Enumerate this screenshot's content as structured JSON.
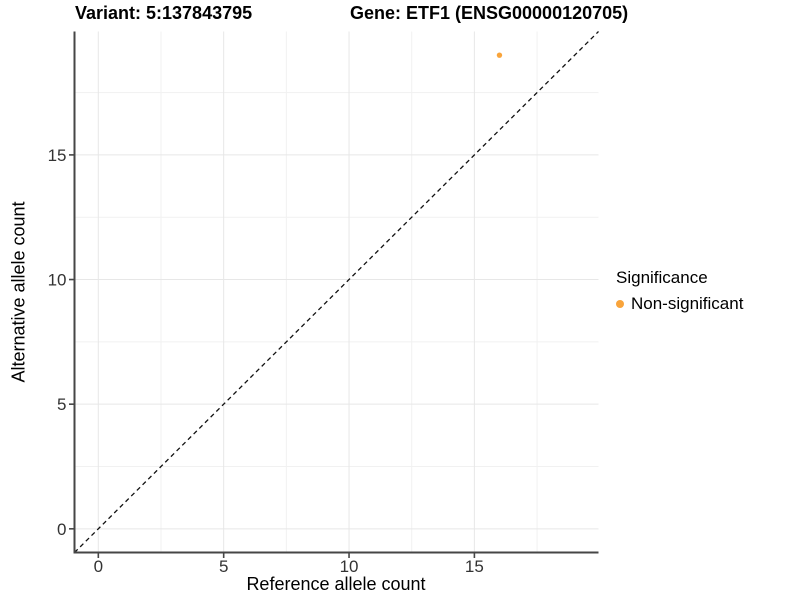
{
  "chart_data": {
    "type": "scatter",
    "titles": {
      "left": "Variant: 5:137843795",
      "right": "Gene: ETF1 (ENSG00000120705)"
    },
    "xlabel": "Reference allele count",
    "ylabel": "Alternative allele count",
    "xlim": [
      -0.95,
      19.95
    ],
    "ylim": [
      -0.95,
      19.95
    ],
    "x_major_ticks": [
      0,
      5,
      10,
      15
    ],
    "y_major_ticks": [
      0,
      5,
      10,
      15
    ],
    "x_minor_ticks": [
      2.5,
      7.5,
      12.5,
      17.5
    ],
    "y_minor_ticks": [
      2.5,
      7.5,
      12.5,
      17.5
    ],
    "grid": true,
    "identity_line": {
      "style": "dashed",
      "slope": 1,
      "intercept": 0,
      "color": "#111111"
    },
    "series": [
      {
        "name": "Non-significant",
        "color": "#F9A43B",
        "points": [
          {
            "x": 16,
            "y": 19
          }
        ]
      }
    ],
    "legend": {
      "title": "Significance",
      "position": "right",
      "items": [
        {
          "label": "Non-significant",
          "color": "#F9A43B"
        }
      ]
    },
    "colors": {
      "grid_major": "#E7E7E7",
      "grid_minor": "#F1F1F1",
      "axis_line": "#464646",
      "tick_text": "#333333",
      "background": "#FFFFFF"
    }
  }
}
